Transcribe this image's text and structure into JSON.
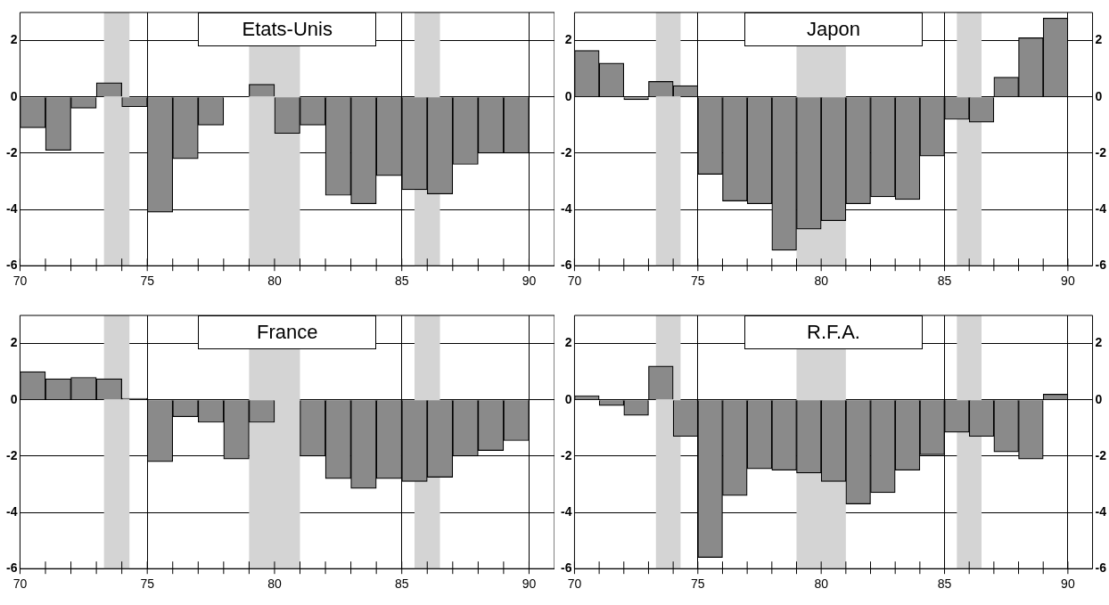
{
  "chart_data": [
    {
      "type": "bar",
      "title": "Etats-Unis",
      "x": [
        70.5,
        71.5,
        72.5,
        73.5,
        74.5,
        75.5,
        76.5,
        77.5,
        78.5,
        79.5,
        80.5,
        81.5,
        82.5,
        83.5,
        84.5,
        85.5,
        86.5,
        87.5,
        88.5,
        89.5
      ],
      "values": [
        -1.1,
        -1.9,
        -0.4,
        0.5,
        -0.35,
        -4.1,
        -2.2,
        -1.0,
        0,
        0.45,
        -1.3,
        -1.0,
        -3.5,
        -3.8,
        -2.8,
        -3.3,
        -3.45,
        -2.4,
        -2.0,
        -2.0
      ],
      "color": "#8a8a8a",
      "xlim": [
        70,
        91
      ],
      "xticks": [
        70,
        {
          "value": 71,
          "label": null
        },
        {
          "value": 72,
          "label": null
        },
        {
          "value": 73,
          "label": null
        },
        {
          "value": 74,
          "label": null
        },
        75,
        {
          "value": 76,
          "label": null
        },
        {
          "value": 77,
          "label": null
        },
        {
          "value": 78,
          "label": null
        },
        {
          "value": 79,
          "label": null
        },
        80,
        {
          "value": 81,
          "label": null
        },
        {
          "value": 82,
          "label": null
        },
        {
          "value": 83,
          "label": null
        },
        {
          "value": 84,
          "label": null
        },
        85,
        {
          "value": 86,
          "label": null
        },
        {
          "value": 87,
          "label": null
        },
        {
          "value": 88,
          "label": null
        },
        {
          "value": 89,
          "label": null
        },
        90
      ],
      "ylim": [
        -6,
        3
      ],
      "yticks": [
        -6,
        -4,
        -2,
        0,
        2
      ],
      "grid": true,
      "bands": [
        {
          "axis": "x",
          "from": 73.3,
          "to": 74.3,
          "color": "#d4d4d4"
        },
        {
          "axis": "x",
          "from": 79,
          "to": 81,
          "color": "#d4d4d4"
        },
        {
          "axis": "x",
          "from": 85.5,
          "to": 86.5,
          "color": "#d4d4d4"
        }
      ]
    },
    {
      "type": "bar",
      "title": "Japon",
      "x": [
        70.5,
        71.5,
        72.5,
        73.5,
        74.5,
        75.5,
        76.5,
        77.5,
        78.5,
        79.5,
        80.5,
        81.5,
        82.5,
        83.5,
        84.5,
        85.5,
        86.5,
        87.5,
        88.5,
        89.5
      ],
      "values": [
        1.65,
        1.2,
        -0.1,
        0.55,
        0.4,
        -2.75,
        -3.7,
        -3.8,
        -5.45,
        -4.7,
        -4.4,
        -3.8,
        -3.55,
        -3.65,
        -2.1,
        -0.8,
        -0.9,
        0.7,
        2.1,
        2.8
      ],
      "color": "#8a8a8a",
      "xlim": [
        70,
        91
      ],
      "xticks": [
        70,
        {
          "value": 71,
          "label": null
        },
        {
          "value": 72,
          "label": null
        },
        {
          "value": 73,
          "label": null
        },
        {
          "value": 74,
          "label": null
        },
        75,
        {
          "value": 76,
          "label": null
        },
        {
          "value": 77,
          "label": null
        },
        {
          "value": 78,
          "label": null
        },
        {
          "value": 79,
          "label": null
        },
        80,
        {
          "value": 81,
          "label": null
        },
        {
          "value": 82,
          "label": null
        },
        {
          "value": 83,
          "label": null
        },
        {
          "value": 84,
          "label": null
        },
        85,
        {
          "value": 86,
          "label": null
        },
        {
          "value": 87,
          "label": null
        },
        {
          "value": 88,
          "label": null
        },
        {
          "value": 89,
          "label": null
        },
        90
      ],
      "ylim": [
        -6,
        3
      ],
      "yticks": [
        -6,
        -4,
        -2,
        0,
        2
      ],
      "y2lim": [
        -6,
        3
      ],
      "y2ticks": [
        -6,
        -4,
        -2,
        0,
        2
      ],
      "grid": true,
      "bands": [
        {
          "axis": "x",
          "from": 73.3,
          "to": 74.3,
          "color": "#d4d4d4"
        },
        {
          "axis": "x",
          "from": 79,
          "to": 81,
          "color": "#d4d4d4"
        },
        {
          "axis": "x",
          "from": 85.5,
          "to": 86.5,
          "color": "#d4d4d4"
        }
      ]
    },
    {
      "type": "bar",
      "title": "France",
      "x": [
        70.5,
        71.5,
        72.5,
        73.5,
        74.5,
        75.5,
        76.5,
        77.5,
        78.5,
        79.5,
        80.5,
        81.5,
        82.5,
        83.5,
        84.5,
        85.5,
        86.5,
        87.5,
        88.5,
        89.5
      ],
      "values": [
        1.0,
        0.75,
        0.8,
        0.75,
        0.05,
        -2.2,
        -0.6,
        -0.8,
        -2.1,
        -0.8,
        null,
        -2.0,
        -2.8,
        -3.15,
        -2.8,
        -2.9,
        -2.75,
        -2.0,
        -1.8,
        -1.45
      ],
      "color": "#8a8a8a",
      "xlim": [
        70,
        91
      ],
      "xticks": [
        70,
        {
          "value": 71,
          "label": null
        },
        {
          "value": 72,
          "label": null
        },
        {
          "value": 73,
          "label": null
        },
        {
          "value": 74,
          "label": null
        },
        75,
        {
          "value": 76,
          "label": null
        },
        {
          "value": 77,
          "label": null
        },
        {
          "value": 78,
          "label": null
        },
        {
          "value": 79,
          "label": null
        },
        80,
        {
          "value": 81,
          "label": null
        },
        {
          "value": 82,
          "label": null
        },
        {
          "value": 83,
          "label": null
        },
        {
          "value": 84,
          "label": null
        },
        85,
        {
          "value": 86,
          "label": null
        },
        {
          "value": 87,
          "label": null
        },
        {
          "value": 88,
          "label": null
        },
        {
          "value": 89,
          "label": null
        },
        90
      ],
      "ylim": [
        -6,
        3
      ],
      "yticks": [
        -6,
        -4,
        -2,
        0,
        2
      ],
      "grid": true,
      "bands": [
        {
          "axis": "x",
          "from": 73.3,
          "to": 74.3,
          "color": "#d4d4d4"
        },
        {
          "axis": "x",
          "from": 79,
          "to": 81,
          "color": "#d4d4d4"
        },
        {
          "axis": "x",
          "from": 85.5,
          "to": 86.5,
          "color": "#d4d4d4"
        }
      ]
    },
    {
      "type": "bar",
      "title": "R.F.A.",
      "x": [
        70.5,
        71.5,
        72.5,
        73.5,
        74.5,
        75.5,
        76.5,
        77.5,
        78.5,
        79.5,
        80.5,
        81.5,
        82.5,
        83.5,
        84.5,
        85.5,
        86.5,
        87.5,
        88.5,
        89.5
      ],
      "values": [
        0.15,
        -0.2,
        -0.55,
        1.2,
        -1.3,
        -5.6,
        -3.4,
        -2.45,
        -2.5,
        -2.6,
        -2.9,
        -3.7,
        -3.3,
        -2.5,
        -1.95,
        -1.15,
        -1.3,
        -1.85,
        -2.1,
        0.2
      ],
      "color": "#8a8a8a",
      "xlim": [
        70,
        91
      ],
      "xticks": [
        70,
        {
          "value": 71,
          "label": null
        },
        {
          "value": 72,
          "label": null
        },
        {
          "value": 73,
          "label": null
        },
        {
          "value": 74,
          "label": null
        },
        75,
        {
          "value": 76,
          "label": null
        },
        {
          "value": 77,
          "label": null
        },
        {
          "value": 78,
          "label": null
        },
        {
          "value": 79,
          "label": null
        },
        80,
        {
          "value": 81,
          "label": null
        },
        {
          "value": 82,
          "label": null
        },
        {
          "value": 83,
          "label": null
        },
        {
          "value": 84,
          "label": null
        },
        85,
        {
          "value": 86,
          "label": null
        },
        {
          "value": 87,
          "label": null
        },
        {
          "value": 88,
          "label": null
        },
        {
          "value": 89,
          "label": null
        },
        90
      ],
      "ylim": [
        -6,
        3
      ],
      "yticks": [
        -6,
        -4,
        -2,
        0,
        2
      ],
      "y2lim": [
        -6,
        3
      ],
      "y2ticks": [
        -6,
        -4,
        -2,
        0,
        2
      ],
      "grid": true,
      "bands": [
        {
          "axis": "x",
          "from": 73.3,
          "to": 74.3,
          "color": "#d4d4d4"
        },
        {
          "axis": "x",
          "from": 79,
          "to": 81,
          "color": "#d4d4d4"
        },
        {
          "axis": "x",
          "from": 85.5,
          "to": 86.5,
          "color": "#d4d4d4"
        }
      ]
    }
  ]
}
